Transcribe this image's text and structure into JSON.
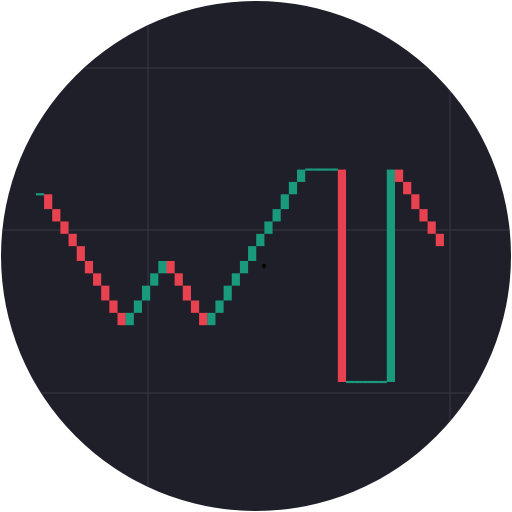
{
  "colors": {
    "background": "#1e1f29",
    "grid": "#33353f",
    "up": "#1a9a7c",
    "down": "#e8414f",
    "crosshair": "#000000",
    "page": "#ffffff"
  },
  "chart_data": {
    "type": "candlestick",
    "title": "",
    "xlabel": "",
    "ylabel": "",
    "grid": true,
    "ylim": [
      0,
      100
    ],
    "x": [
      1,
      2,
      3,
      4,
      5,
      6,
      7,
      8,
      9,
      10,
      11,
      12,
      13,
      14,
      15,
      16,
      17,
      18,
      19,
      20,
      21,
      22,
      23,
      24,
      25,
      26,
      27,
      28,
      29,
      30,
      31,
      32,
      33,
      34,
      35,
      36,
      37,
      38,
      39,
      40,
      41,
      42,
      43,
      44,
      45,
      46,
      47,
      48,
      49,
      50
    ],
    "series": [
      {
        "open": [
          76.0,
          76.0,
          70.0,
          65.0,
          60.0,
          55.0,
          49.0,
          44.0,
          39.0,
          33.0,
          28.0,
          23.0,
          28.0,
          33.0,
          39.0,
          44.0,
          49.0,
          44.0,
          39.0,
          33.0,
          28.0,
          23.0,
          28.0,
          33.0,
          39.0,
          44.0,
          49.0,
          55.0,
          60.0,
          65.0,
          70.0,
          76.0,
          81.0,
          86.0,
          86.0,
          86.0,
          86.0,
          86.0,
          0.0,
          0.0,
          0.0,
          0.0,
          0.0,
          0.0,
          86.0,
          81.0,
          76.0,
          70.0,
          65.0,
          60.0
        ],
        "close": [
          76.0,
          70.0,
          65.0,
          60.0,
          55.0,
          49.0,
          44.0,
          39.0,
          33.0,
          28.0,
          23.0,
          28.0,
          33.0,
          39.0,
          44.0,
          49.0,
          44.0,
          39.0,
          33.0,
          28.0,
          23.0,
          28.0,
          33.0,
          39.0,
          44.0,
          49.0,
          55.0,
          60.0,
          65.0,
          70.0,
          76.0,
          81.0,
          86.0,
          86.0,
          86.0,
          86.0,
          86.0,
          0.0,
          0.0,
          0.0,
          0.0,
          0.0,
          0.0,
          86.0,
          81.0,
          76.0,
          70.0,
          65.0,
          60.0,
          55.0
        ]
      }
    ]
  }
}
